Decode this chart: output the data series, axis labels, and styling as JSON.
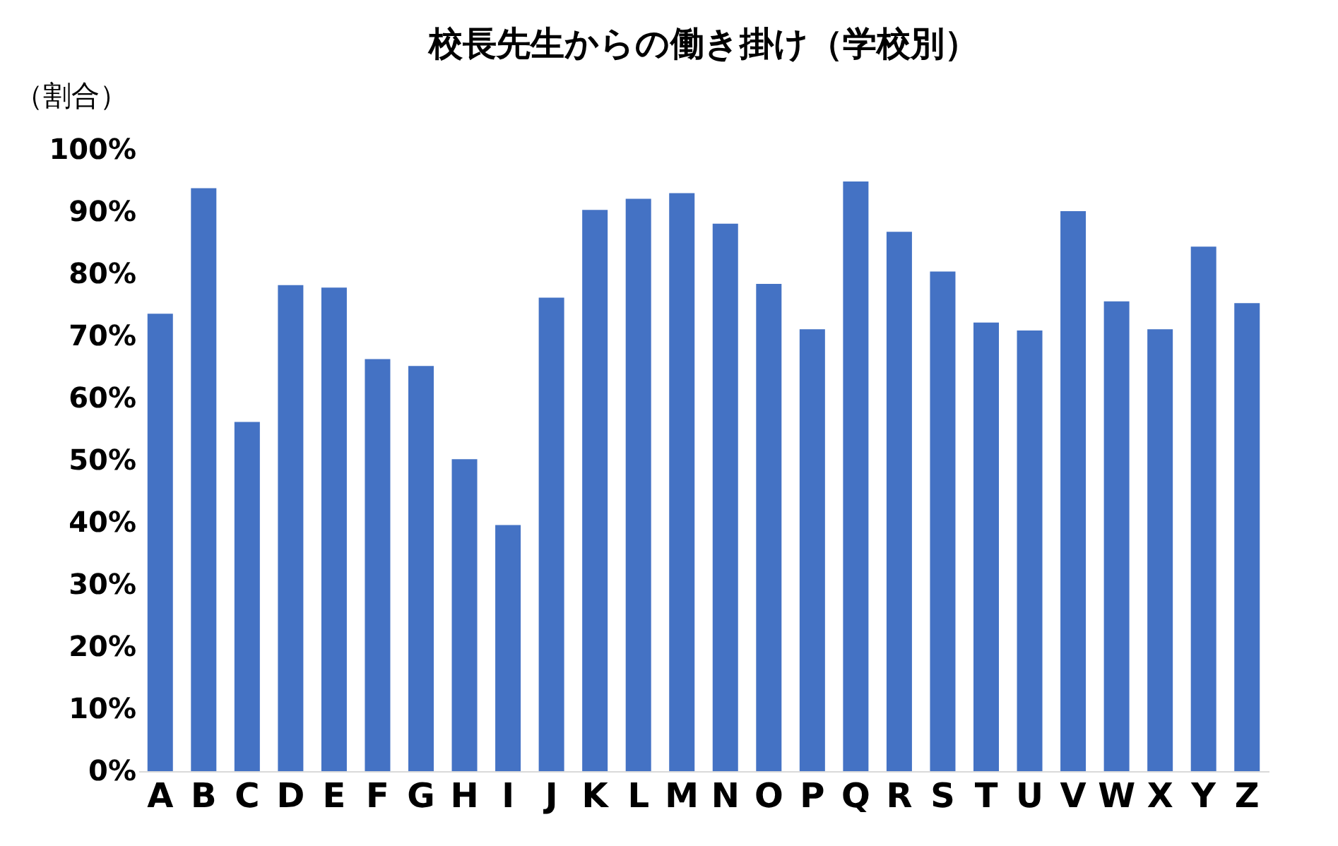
{
  "chart_data": {
    "type": "bar",
    "title": "校長先生からの働き掛け（学校別）",
    "ylabel": "（割合）",
    "categories": [
      "A",
      "B",
      "C",
      "D",
      "E",
      "F",
      "G",
      "H",
      "I",
      "J",
      "K",
      "L",
      "M",
      "N",
      "O",
      "P",
      "Q",
      "R",
      "S",
      "T",
      "U",
      "V",
      "W",
      "X",
      "Y",
      "Z"
    ],
    "values": [
      73.6,
      93.8,
      56.2,
      78.2,
      77.8,
      66.3,
      65.2,
      50.2,
      39.6,
      76.2,
      90.3,
      92.1,
      93.0,
      88.1,
      78.4,
      71.1,
      94.9,
      86.8,
      80.4,
      72.2,
      70.9,
      90.1,
      75.6,
      71.1,
      84.4,
      75.3
    ],
    "color": "#4472c4",
    "ylim": [
      0,
      100
    ],
    "yticks": [
      {
        "value": 0,
        "label": "0%"
      },
      {
        "value": 10,
        "label": "10%"
      },
      {
        "value": 20,
        "label": "20%"
      },
      {
        "value": 30,
        "label": "30%"
      },
      {
        "value": 40,
        "label": "40%"
      },
      {
        "value": 50,
        "label": "50%"
      },
      {
        "value": 60,
        "label": "60%"
      },
      {
        "value": 70,
        "label": "70%"
      },
      {
        "value": 80,
        "label": "80%"
      },
      {
        "value": 90,
        "label": "90%"
      },
      {
        "value": 100,
        "label": "100%"
      }
    ],
    "grid": false
  }
}
